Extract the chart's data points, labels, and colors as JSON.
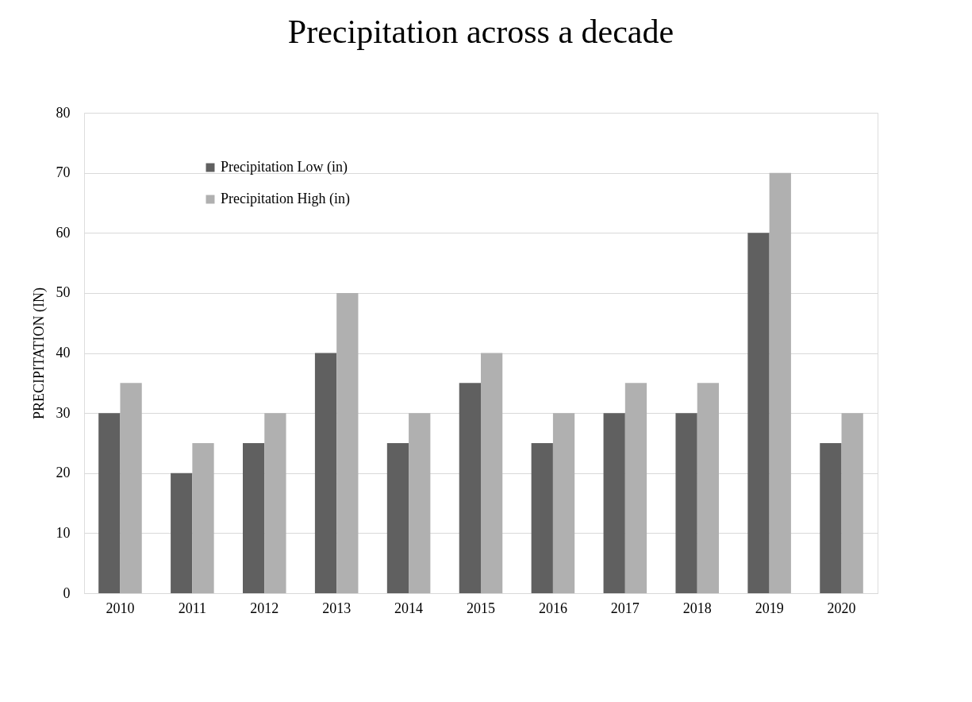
{
  "chart_data": {
    "type": "bar",
    "title": "Precipitation across a decade",
    "ylabel": "PRECIPITATION (IN)",
    "categories": [
      "2010",
      "2011",
      "2012",
      "2013",
      "2014",
      "2015",
      "2016",
      "2017",
      "2018",
      "2019",
      "2020"
    ],
    "series": [
      {
        "name": "Precipitation Low (in)",
        "color": "#606060",
        "values": [
          30,
          20,
          25,
          40,
          25,
          35,
          25,
          30,
          30,
          60,
          25
        ]
      },
      {
        "name": "Precipitation High (in)",
        "color": "#b0b0b0",
        "values": [
          35,
          25,
          30,
          50,
          30,
          40,
          30,
          35,
          35,
          70,
          30
        ]
      }
    ],
    "ylim": [
      0,
      80
    ],
    "yticks": [
      0,
      10,
      20,
      30,
      40,
      50,
      60,
      70,
      80
    ],
    "grid": "y",
    "legend": "top left"
  }
}
